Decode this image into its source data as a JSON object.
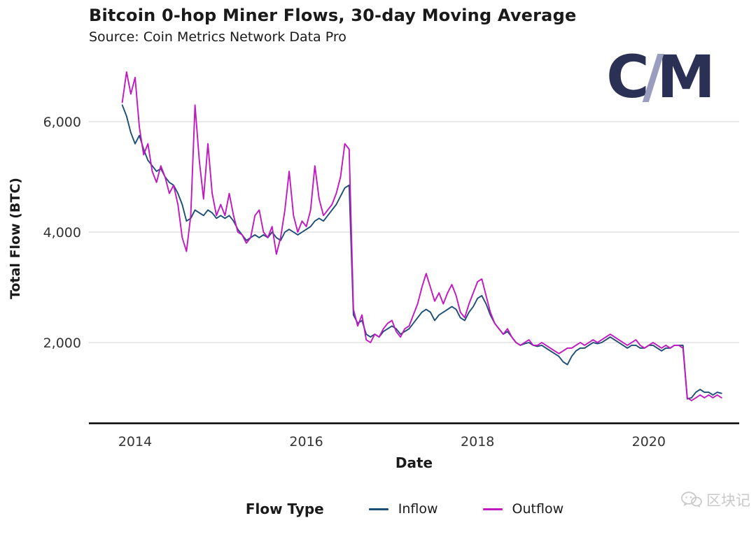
{
  "title": "Bitcoin 0-hop Miner Flows, 30-day Moving Average",
  "subtitle": "Source: Coin Metrics Network Data Pro",
  "logo": {
    "left": "C",
    "slash": "/",
    "right": "M"
  },
  "watermark": {
    "text": "区块记"
  },
  "legend": {
    "title": "Flow Type",
    "items": [
      {
        "label": "Inflow",
        "color": "#1d4f76"
      },
      {
        "label": "Outflow",
        "color": "#c118c1"
      }
    ]
  },
  "axes": {
    "x": {
      "label": "Date",
      "ticks": [
        2014,
        2016,
        2018,
        2020
      ],
      "tick_labels": [
        "2014",
        "2016",
        "2018",
        "2020"
      ]
    },
    "y": {
      "label": "Total Flow (BTC)",
      "ticks": [
        6000,
        4000,
        2000
      ],
      "tick_labels": [
        "6,000",
        "4,000",
        "2,000"
      ]
    }
  },
  "colors": {
    "inflow": "#1d4f76",
    "outflow": "#c118c1",
    "grid": "#dcdcdc",
    "axis": "#000000",
    "tick_text": "#333333"
  },
  "chart_data": {
    "type": "line",
    "title": "Bitcoin 0-hop Miner Flows, 30-day Moving Average",
    "subtitle": "Source: Coin Metrics Network Data Pro",
    "xlabel": "Date",
    "ylabel": "Total Flow (BTC)",
    "xlim": [
      2013.7,
      2021.1
    ],
    "ylim": [
      500,
      7200
    ],
    "x_ticks": [
      2014,
      2016,
      2018,
      2020
    ],
    "y_ticks": [
      2000,
      4000,
      6000
    ],
    "grid": "horizontal",
    "legend_position": "bottom",
    "x": {
      "start": 2013.85,
      "step": 0.05,
      "count": 141,
      "unit": "decimal-year"
    },
    "series": [
      {
        "name": "Inflow",
        "color": "#1d4f76",
        "values": [
          6300,
          6100,
          5800,
          5600,
          5750,
          5500,
          5300,
          5200,
          5100,
          5150,
          5000,
          4900,
          4850,
          4700,
          4500,
          4200,
          4250,
          4400,
          4350,
          4300,
          4400,
          4350,
          4250,
          4300,
          4250,
          4300,
          4200,
          4050,
          3950,
          3850,
          3900,
          3950,
          3900,
          3950,
          3900,
          4000,
          3900,
          3850,
          4000,
          4050,
          4000,
          3950,
          4000,
          4050,
          4100,
          4200,
          4250,
          4200,
          4300,
          4400,
          4500,
          4650,
          4800,
          4850,
          2500,
          2350,
          2400,
          2150,
          2100,
          2150,
          2100,
          2200,
          2250,
          2300,
          2250,
          2150,
          2200,
          2250,
          2350,
          2450,
          2550,
          2600,
          2550,
          2400,
          2500,
          2550,
          2600,
          2650,
          2600,
          2450,
          2400,
          2550,
          2650,
          2800,
          2850,
          2700,
          2500,
          2350,
          2250,
          2150,
          2200,
          2100,
          2000,
          1950,
          1980,
          2000,
          1950,
          1930,
          1950,
          1900,
          1850,
          1800,
          1750,
          1650,
          1600,
          1750,
          1850,
          1900,
          1900,
          1950,
          2000,
          1980,
          2000,
          2050,
          2100,
          2050,
          2000,
          1950,
          1900,
          1950,
          1950,
          1900,
          1900,
          1950,
          1950,
          1900,
          1850,
          1900,
          1900,
          1950,
          1950,
          1950,
          980,
          1000,
          1100,
          1150,
          1100,
          1100,
          1050,
          1100,
          1080
        ]
      },
      {
        "name": "Outflow",
        "color": "#c118c1",
        "values": [
          6350,
          6900,
          6500,
          6800,
          5900,
          5400,
          5600,
          5100,
          4900,
          5200,
          5000,
          4700,
          4850,
          4500,
          3900,
          3650,
          4300,
          6300,
          5300,
          4600,
          5600,
          4700,
          4300,
          4500,
          4300,
          4700,
          4300,
          4000,
          3950,
          3800,
          3900,
          4300,
          4400,
          4000,
          3900,
          4100,
          3600,
          3900,
          4400,
          5100,
          4300,
          4000,
          4200,
          4100,
          4400,
          5200,
          4600,
          4300,
          4400,
          4500,
          4700,
          5000,
          5600,
          5500,
          2600,
          2300,
          2500,
          2050,
          2000,
          2150,
          2100,
          2250,
          2350,
          2400,
          2200,
          2100,
          2250,
          2300,
          2500,
          2700,
          3000,
          3250,
          3000,
          2750,
          2900,
          2700,
          2900,
          3050,
          2850,
          2550,
          2450,
          2700,
          2900,
          3100,
          3150,
          2850,
          2550,
          2350,
          2250,
          2150,
          2250,
          2100,
          2000,
          1950,
          2000,
          2050,
          1950,
          1950,
          2000,
          1950,
          1900,
          1850,
          1800,
          1850,
          1900,
          1900,
          1950,
          2000,
          1950,
          2000,
          2050,
          2000,
          2050,
          2100,
          2150,
          2100,
          2050,
          2000,
          1950,
          2000,
          2050,
          1950,
          1900,
          1950,
          2000,
          1950,
          1900,
          1950,
          1900,
          1950,
          1950,
          1900,
          1000,
          950,
          1000,
          1050,
          1000,
          1050,
          1000,
          1050,
          1000
        ]
      }
    ]
  }
}
